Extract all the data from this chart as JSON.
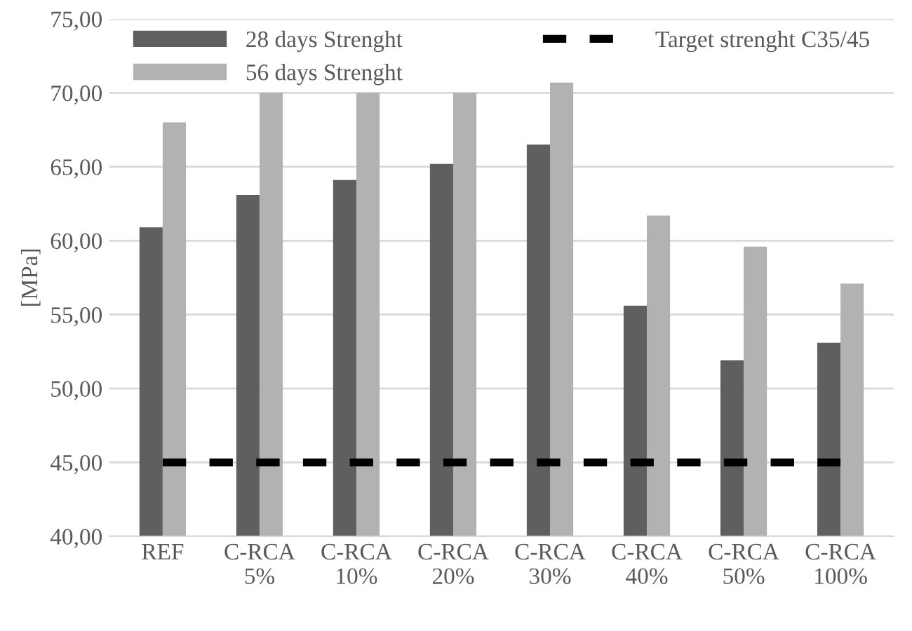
{
  "chart_data": {
    "type": "bar",
    "ylabel": "[MPa]",
    "categories": [
      "REF",
      "C-RCA\n5%",
      "C-RCA\n10%",
      "C-RCA\n20%",
      "C-RCA\n30%",
      "C-RCA\n40%",
      "C-RCA\n50%",
      "C-RCA\n100%"
    ],
    "series": [
      {
        "name": "28 days Strenght",
        "color": "#5f5f5f",
        "values": [
          60.9,
          63.1,
          64.1,
          65.2,
          66.5,
          55.6,
          51.9,
          53.1
        ]
      },
      {
        "name": "56 days Strenght",
        "color": "#b2b2b2",
        "values": [
          68.0,
          70.0,
          70.0,
          70.0,
          70.7,
          61.7,
          59.6,
          57.1
        ]
      },
      {
        "name": "Target strenght C35/45",
        "color": "#000000",
        "type": "line",
        "line_style": "dashed",
        "values": [
          45,
          45,
          45,
          45,
          45,
          45,
          45,
          45
        ]
      }
    ],
    "ylim": [
      40,
      75
    ],
    "yticks": [
      {
        "value": 40,
        "label": "40,00"
      },
      {
        "value": 45,
        "label": "45,00"
      },
      {
        "value": 50,
        "label": "50,00"
      },
      {
        "value": 55,
        "label": "55,00"
      },
      {
        "value": 60,
        "label": "60,00"
      },
      {
        "value": 65,
        "label": "65,00"
      },
      {
        "value": 70,
        "label": "70,00"
      },
      {
        "value": 75,
        "label": "75,00"
      }
    ],
    "grid": "y",
    "legend": "top"
  }
}
